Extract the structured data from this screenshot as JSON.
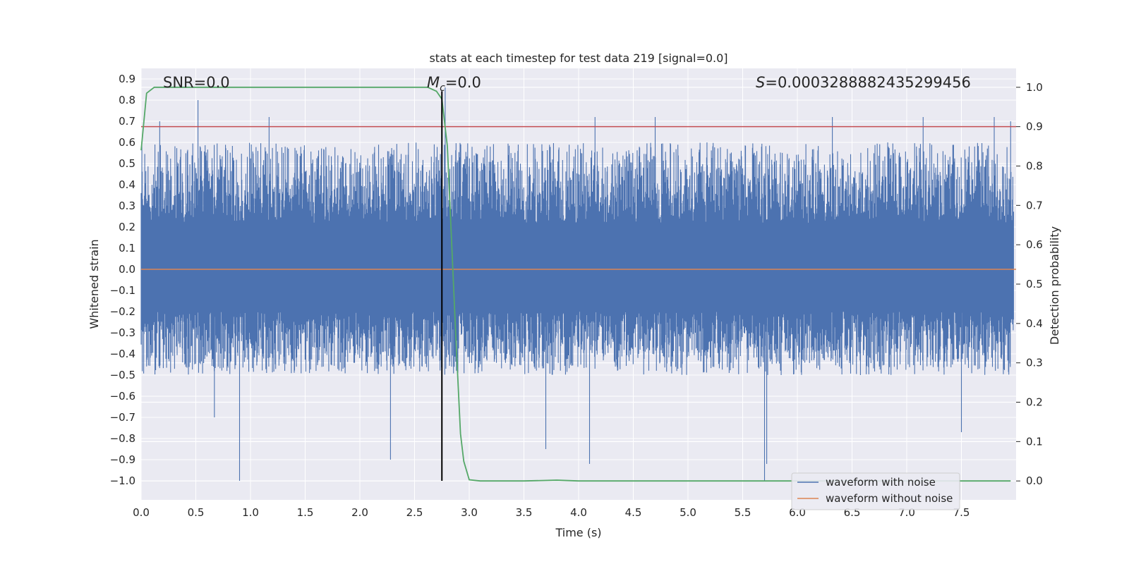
{
  "chart_data": {
    "type": "line",
    "title": "stats at each timestep for test data 219 [signal=0.0]",
    "xlabel": "Time (s)",
    "ylabel_left": "Whitened strain",
    "ylabel_right": "Detection probability",
    "xlim": [
      0.0,
      8.0
    ],
    "ylim_left": [
      -1.09,
      0.95
    ],
    "ylim_right": [
      -0.048,
      1.048
    ],
    "x_ticks": [
      "0.0",
      "0.5",
      "1.0",
      "1.5",
      "2.0",
      "2.5",
      "3.0",
      "3.5",
      "4.0",
      "4.5",
      "5.0",
      "5.5",
      "6.0",
      "6.5",
      "7.0",
      "7.5"
    ],
    "y_left_ticks": [
      "0.9",
      "0.8",
      "0.7",
      "0.6",
      "0.5",
      "0.4",
      "0.3",
      "0.2",
      "0.1",
      "0.0",
      "−0.1",
      "−0.2",
      "−0.3",
      "−0.4",
      "−0.5",
      "−0.6",
      "−0.7",
      "−0.8",
      "−0.9",
      "−1.0"
    ],
    "y_right_ticks": [
      "1.0",
      "0.9",
      "0.8",
      "0.7",
      "0.6",
      "0.5",
      "0.4",
      "0.3",
      "0.2",
      "0.1",
      "0.0"
    ],
    "grid": true,
    "legend_position": "lower-right",
    "annotations": {
      "snr": "SNR=0.0",
      "mc_symbol": "M",
      "mc_sub": "c",
      "mc_value": "=0.0",
      "s_symbol": "S",
      "s_value": "=0.0003288882435299456"
    },
    "series": [
      {
        "name": "waveform with noise",
        "color": "#4c72b0",
        "axis": "left",
        "envelope_note": "dense noise between approx -0.45 and 0.6",
        "spikes_up": [
          [
            0.52,
            0.8
          ],
          [
            0.17,
            0.7
          ],
          [
            1.17,
            0.72
          ],
          [
            2.78,
            0.86
          ],
          [
            4.15,
            0.72
          ],
          [
            4.7,
            0.72
          ],
          [
            6.32,
            0.72
          ],
          [
            7.15,
            0.72
          ],
          [
            7.8,
            0.72
          ],
          [
            7.95,
            0.7
          ]
        ],
        "spikes_down": [
          [
            0.9,
            -1.0
          ],
          [
            2.28,
            -0.9
          ],
          [
            4.1,
            -0.92
          ],
          [
            5.7,
            -1.0
          ],
          [
            5.72,
            -0.92
          ],
          [
            7.5,
            -0.77
          ],
          [
            0.67,
            -0.7
          ],
          [
            3.7,
            -0.85
          ]
        ]
      },
      {
        "name": "waveform without noise",
        "color": "#dd8452",
        "axis": "left",
        "x": [
          0.0,
          8.0
        ],
        "y": [
          0.0,
          0.0
        ]
      },
      {
        "color": "#55a868",
        "axis": "right",
        "x": [
          0.0,
          0.05,
          0.12,
          0.3,
          1.0,
          2.0,
          2.5,
          2.62,
          2.7,
          2.75,
          2.8,
          2.84,
          2.88,
          2.92,
          2.95,
          3.0,
          3.1,
          3.5,
          3.8,
          4.0,
          5.0,
          6.0,
          7.0,
          7.95
        ],
        "y": [
          0.84,
          0.985,
          1.0,
          1.0,
          1.0,
          1.0,
          1.0,
          1.0,
          0.99,
          0.97,
          0.85,
          0.6,
          0.35,
          0.12,
          0.05,
          0.003,
          0.0,
          0.0,
          0.002,
          0.0,
          0.0,
          0.0,
          0.0,
          0.0
        ]
      }
    ],
    "threshold_line": {
      "axis": "right",
      "value": 0.9,
      "color": "#c44e52"
    },
    "marker_line": {
      "x": 2.75,
      "color": "#000000"
    }
  }
}
